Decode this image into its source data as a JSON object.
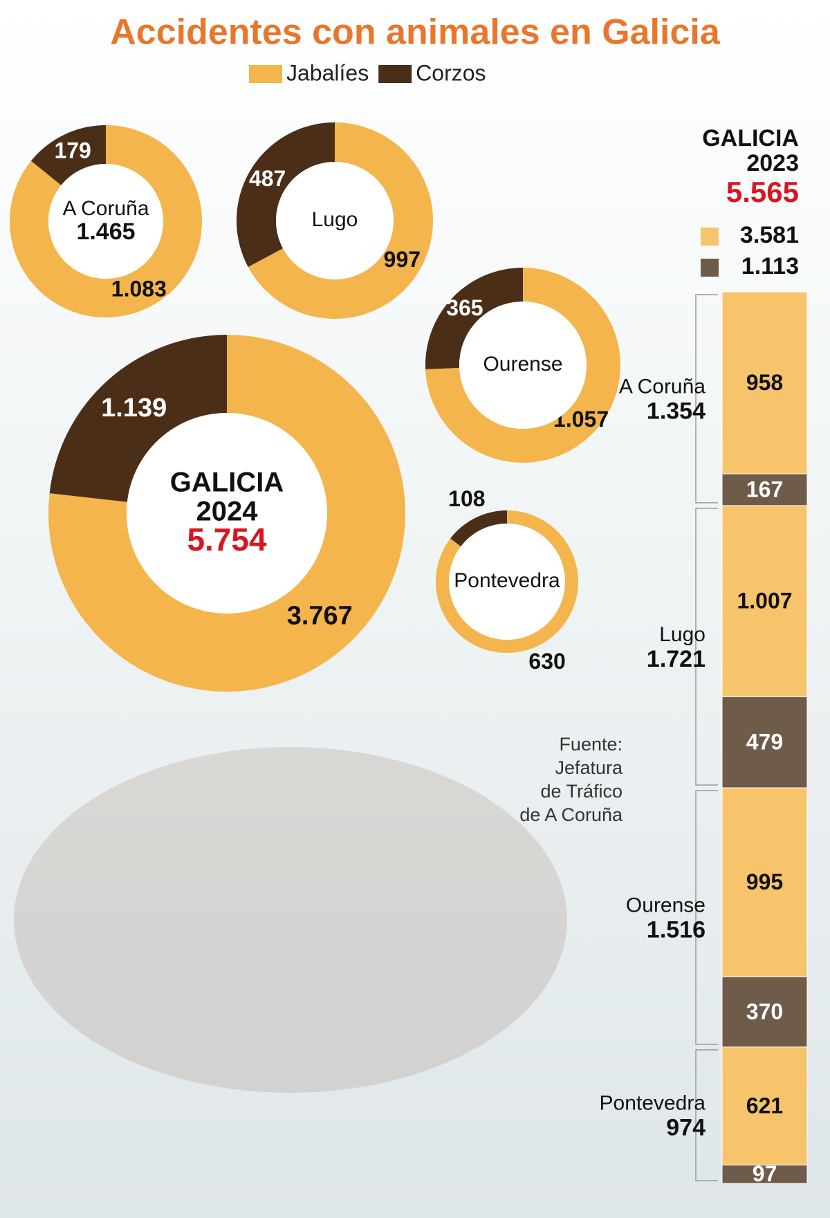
{
  "title": "Accidentes con animales en Galicia",
  "legend": [
    {
      "name": "Jabalíes",
      "color": "#f4b54c"
    },
    {
      "name": "Corzos",
      "color": "#4a2e17"
    }
  ],
  "source": [
    "Fuente:",
    "Jefatura",
    "de Tráfico",
    "de A Coruña"
  ],
  "chart_data": [
    {
      "type": "donut",
      "title": "A Coruña",
      "total": {
        "value": 1465,
        "label": "1.465"
      },
      "categories": [
        "Jabalíes",
        "Corzos"
      ],
      "values": [
        1083,
        179
      ],
      "value_labels": [
        "1.083",
        "179"
      ],
      "colors": [
        "#f4b54c",
        "#4a2e17"
      ]
    },
    {
      "type": "donut",
      "title": "Lugo",
      "categories": [
        "Jabalíes",
        "Corzos"
      ],
      "values": [
        997,
        487
      ],
      "colors": [
        "#f4b54c",
        "#4a2e17"
      ]
    },
    {
      "type": "donut",
      "title": "Ourense",
      "categories": [
        "Jabalíes",
        "Corzos"
      ],
      "values": [
        1057,
        365
      ],
      "value_labels": [
        "1.057",
        "365"
      ],
      "colors": [
        "#f4b54c",
        "#4a2e17"
      ]
    },
    {
      "type": "donut",
      "title": "Pontevedra",
      "categories": [
        "Jabalíes",
        "Corzos"
      ],
      "values": [
        630,
        108
      ],
      "colors": [
        "#f4b54c",
        "#4a2e17"
      ]
    },
    {
      "type": "donut",
      "title": "GALICIA",
      "subtitle": "2024",
      "total": {
        "value": 5754,
        "label": "5.754"
      },
      "categories": [
        "Jabalíes",
        "Corzos"
      ],
      "values": [
        3767,
        1139
      ],
      "value_labels": [
        "3.767",
        "1.139"
      ],
      "colors": [
        "#f4b54c",
        "#4a2e17"
      ]
    },
    {
      "type": "stacked_bar",
      "title": "GALICIA",
      "subtitle": "2023",
      "total": {
        "value": 5565,
        "label": "5.565"
      },
      "categories": [
        "A Coruña",
        "Lugo",
        "Ourense",
        "Pontevedra"
      ],
      "category_totals": [
        {
          "value": 1354,
          "label": "1.354"
        },
        {
          "value": 1721,
          "label": "1.721"
        },
        {
          "value": 1516,
          "label": "1.516"
        },
        974
      ],
      "series": [
        {
          "name": "Jabalíes",
          "color": "#f7c46c",
          "total": {
            "value": 3581,
            "label": "3.581"
          },
          "values": [
            958,
            1007,
            995,
            621
          ],
          "value_labels": [
            "958",
            "1.007",
            "995",
            "621"
          ]
        },
        {
          "name": "Corzos",
          "color": "#6f5b49",
          "total": {
            "value": 1113,
            "label": "1.113"
          },
          "values": [
            167,
            479,
            370,
            97
          ]
        }
      ]
    }
  ]
}
